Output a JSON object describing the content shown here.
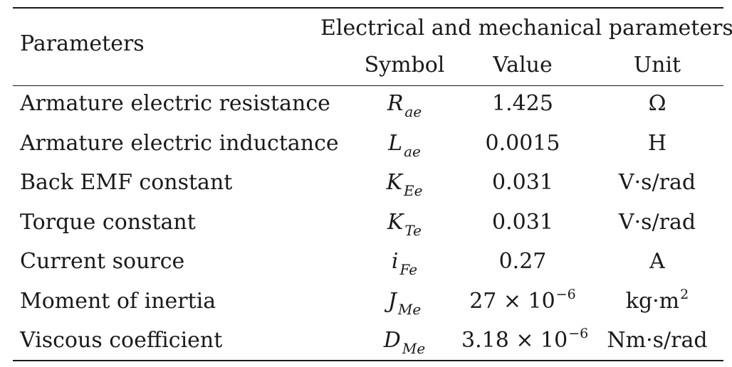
{
  "header": {
    "parameters": "Parameters",
    "group": "Electrical and mechanical parameters",
    "symbol": "Symbol",
    "value": "Value",
    "unit": "Unit"
  },
  "rows": [
    {
      "name": "Armature electric resistance",
      "sym": "R",
      "sub": "ae",
      "value": "1.425",
      "exp": "",
      "unit": "Ω",
      "unit_exp": ""
    },
    {
      "name": "Armature electric inductance",
      "sym": "L",
      "sub": "ae",
      "value": "0.0015",
      "exp": "",
      "unit": "H",
      "unit_exp": ""
    },
    {
      "name": "Back EMF constant",
      "sym": "K",
      "sub": "Ee",
      "value": "0.031",
      "exp": "",
      "unit": "V·s/rad",
      "unit_exp": ""
    },
    {
      "name": "Torque constant",
      "sym": "K",
      "sub": "Te",
      "value": "0.031",
      "exp": "",
      "unit": "V·s/rad",
      "unit_exp": ""
    },
    {
      "name": "Current source",
      "sym": "i",
      "sub": "Fe",
      "value": "0.27",
      "exp": "",
      "unit": "A",
      "unit_exp": ""
    },
    {
      "name": "Moment of inertia",
      "sym": "J",
      "sub": "Me",
      "value": "27 × 10",
      "exp": "−6",
      "unit": "kg·m",
      "unit_exp": "2"
    },
    {
      "name": "Viscous coefficient",
      "sym": "D",
      "sub": "Me",
      "value": "3.18 × 10",
      "exp": "−6",
      "unit": "Nm·s/rad",
      "unit_exp": ""
    }
  ]
}
